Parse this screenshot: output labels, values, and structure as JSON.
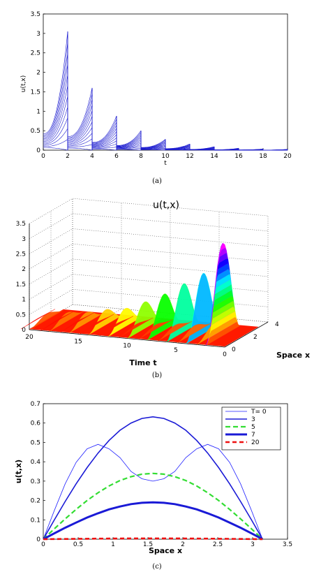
{
  "chart_data": [
    {
      "type": "line",
      "panel": "(a)",
      "caption": "(a)",
      "xlabel": "t",
      "ylabel": "u(t,x)",
      "xlim": [
        0,
        20
      ],
      "ylim": [
        0,
        3.5
      ],
      "xticks": [
        0,
        2,
        4,
        6,
        8,
        10,
        12,
        14,
        16,
        18,
        20
      ],
      "yticks": [
        0,
        0.5,
        1,
        1.5,
        2,
        2.5,
        3,
        3.5
      ],
      "grid": false,
      "line_color": "#1f1fd0",
      "period": 2,
      "peaks_at_period_end": [
        3.05,
        1.6,
        0.88,
        0.5,
        0.28,
        0.16,
        0.09,
        0.05,
        0.03,
        0.02
      ],
      "start_of_period": [
        0.42,
        0.35,
        0.2,
        0.12,
        0.07,
        0.04,
        0.02,
        0.01,
        0.006,
        0.003
      ]
    },
    {
      "type": "surface",
      "panel": "(b)",
      "caption": "(b)",
      "title": "u(t,x)",
      "xlabel": "Time t",
      "ylabel": "Space x",
      "zlim": [
        0,
        3.5
      ],
      "time_ticks": [
        20,
        15,
        10,
        5,
        0
      ],
      "space_ticks": [
        0,
        2,
        4
      ],
      "z_ticks": [
        0,
        0.5,
        1,
        1.5,
        2,
        2.5,
        3,
        3.5
      ],
      "grid": true,
      "peak_value": 3.05,
      "peak_time": 2,
      "slice_peaks": [
        3.05,
        2.0,
        1.6,
        1.2,
        0.88,
        0.6,
        0.5,
        0.35,
        0.28,
        0.2
      ]
    },
    {
      "type": "line",
      "panel": "(c)",
      "caption": "(c)",
      "xlabel": "Space x",
      "ylabel": "u(t,x)",
      "xlim": [
        0,
        3.5
      ],
      "ylim": [
        0,
        0.7
      ],
      "xticks": [
        0,
        0.5,
        1,
        1.5,
        2,
        2.5,
        3,
        3.5
      ],
      "yticks": [
        0,
        0.1,
        0.2,
        0.3,
        0.4,
        0.5,
        0.6,
        0.7
      ],
      "legend_position": "top-right",
      "legend_title": "T= 0",
      "x": [
        0,
        0.157,
        0.314,
        0.471,
        0.628,
        0.785,
        0.942,
        1.1,
        1.257,
        1.414,
        1.571,
        1.728,
        1.885,
        2.042,
        2.199,
        2.356,
        2.513,
        2.67,
        2.827,
        2.985,
        3.142
      ],
      "series": [
        {
          "name": "T= 0",
          "color": "#2020ff",
          "width": 0.8,
          "dash": "solid",
          "values": [
            0,
            0.147,
            0.286,
            0.397,
            0.467,
            0.49,
            0.467,
            0.421,
            0.35,
            0.312,
            0.3,
            0.312,
            0.35,
            0.421,
            0.467,
            0.49,
            0.467,
            0.397,
            0.286,
            0.147,
            0
          ]
        },
        {
          "name": "3",
          "color": "#1a1ad6",
          "width": 1.6,
          "dash": "solid",
          "values": [
            0,
            0.099,
            0.195,
            0.286,
            0.37,
            0.445,
            0.51,
            0.563,
            0.6,
            0.624,
            0.632,
            0.624,
            0.6,
            0.563,
            0.51,
            0.445,
            0.37,
            0.286,
            0.195,
            0.099,
            0
          ]
        },
        {
          "name": "5",
          "color": "#33dd33",
          "width": 2.2,
          "dash": "7,4",
          "values": [
            0,
            0.053,
            0.105,
            0.154,
            0.2,
            0.24,
            0.275,
            0.303,
            0.323,
            0.336,
            0.34,
            0.336,
            0.323,
            0.303,
            0.275,
            0.24,
            0.2,
            0.154,
            0.105,
            0.053,
            0
          ]
        },
        {
          "name": "7",
          "color": "#1a1ad6",
          "width": 3,
          "dash": "solid",
          "values": [
            0,
            0.03,
            0.059,
            0.086,
            0.112,
            0.134,
            0.154,
            0.169,
            0.181,
            0.188,
            0.19,
            0.188,
            0.181,
            0.169,
            0.154,
            0.134,
            0.112,
            0.086,
            0.059,
            0.03,
            0
          ]
        },
        {
          "name": "20",
          "color": "#ee1111",
          "width": 2.6,
          "dash": "6,4",
          "values": [
            0,
            0.0006,
            0.0012,
            0.0018,
            0.0023,
            0.0028,
            0.0032,
            0.0035,
            0.0038,
            0.0039,
            0.004,
            0.0039,
            0.0038,
            0.0035,
            0.0032,
            0.0028,
            0.0023,
            0.0018,
            0.0012,
            0.0006,
            0
          ]
        }
      ]
    }
  ]
}
